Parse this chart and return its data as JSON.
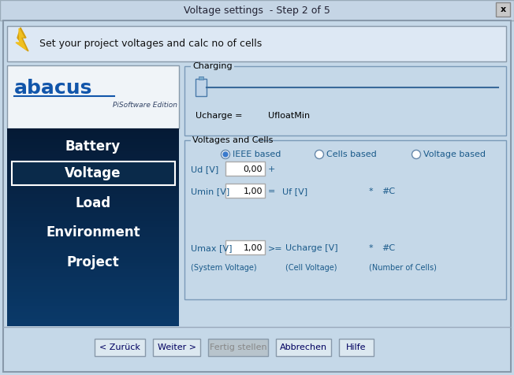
{
  "title": "Voltage settings  - Step 2 of 5",
  "bg_color": "#c5d8e8",
  "panel_top_color": "#ffffff",
  "panel_bot_color": "#0a2a4a",
  "panel_mid_color": "#1a4a7a",
  "header_text": "Set your project voltages and calc no of cells",
  "menu_items": [
    "Battery",
    "Voltage",
    "Load",
    "Environment",
    "Project"
  ],
  "selected_menu": "Voltage",
  "charging_label": "Charging",
  "voltages_label": "Voltages and Cells",
  "radio_options": [
    "IEEE based",
    "Cells based",
    "Voltage based"
  ],
  "selected_radio": 0,
  "ud_label": "Ud [V]",
  "ud_value": "0,00",
  "umin_label": "Umin [V]",
  "umin_value": "1,00",
  "umax_label": "Umax [V]",
  "umax_value": "1,00",
  "uf_label": "Uf [V]",
  "ucharge_label": "Ucharge [V]",
  "hash_c": "#C",
  "sys_volt_label": "(System Voltage)",
  "cell_volt_label": "(Cell Voltage)",
  "num_cells_label": "(Number of Cells)",
  "ucharge_eq": "Ucharge =",
  "ufloat_min": "UfloatMin",
  "buttons": [
    "< Zurück",
    "Weiter >",
    "Fertig stellen",
    "Abbrechen",
    "Hilfe"
  ],
  "button_disabled": "Fertig stellen",
  "abacus_text": "abacus",
  "edition_text": "PiSoftware Edition",
  "groupbox_border": "#7a9ab8",
  "text_blue": "#1a5a8a",
  "input_border": "#aaaaaa",
  "slider_color": "#3a6a9a",
  "radio_fill": "#3a7acc",
  "titlebar_bg": "#c5d5e5"
}
